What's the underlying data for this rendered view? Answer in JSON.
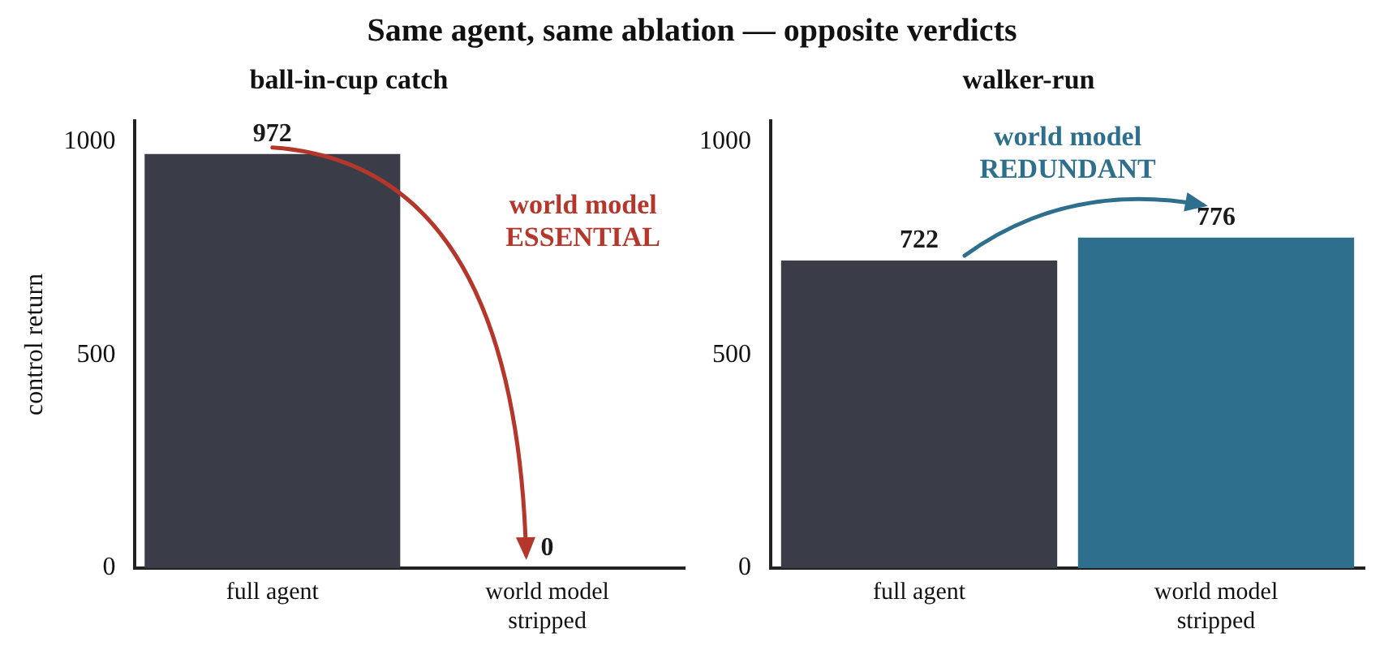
{
  "chart_data": [
    {
      "type": "bar",
      "title": "ball-in-cup catch",
      "ylabel": "control return",
      "categories": [
        "full agent",
        "world model stripped"
      ],
      "values": [
        972,
        0
      ],
      "colors": [
        "#3a3d47",
        "#3a3d47"
      ],
      "data_labels": true,
      "ylim": [
        0,
        1050
      ],
      "yticks": [
        0,
        500,
        1000
      ],
      "grid": false,
      "legend": false,
      "annotations": [
        "Same agent, same ablation — opposite verdicts",
        "world model\nESSENTIAL"
      ]
    },
    {
      "type": "bar",
      "title": "walker-run",
      "categories": [
        "full agent",
        "world model stripped"
      ],
      "values": [
        722,
        776
      ],
      "colors": [
        "#3a3d47",
        "#2e6f8e"
      ],
      "data_labels": true,
      "ylim": [
        0,
        1050
      ],
      "yticks": [
        0,
        500,
        1000
      ],
      "grid": false,
      "legend": false,
      "annotations": [
        "world model\nREDUNDANT"
      ]
    }
  ]
}
